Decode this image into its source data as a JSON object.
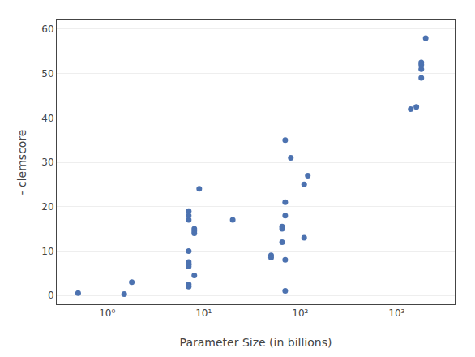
{
  "chart_data": {
    "type": "scatter",
    "x": [
      0.5,
      1.5,
      1.8,
      7,
      7,
      7,
      7,
      7,
      7,
      7,
      7,
      7,
      7,
      8,
      8,
      8,
      8,
      9,
      20,
      50,
      50,
      65,
      65,
      65,
      70,
      70,
      70,
      70,
      70,
      80,
      110,
      110,
      120,
      1400,
      1600,
      1800,
      1800,
      1800,
      1800,
      2000
    ],
    "values": [
      0.5,
      0.3,
      3,
      7.5,
      7,
      7,
      6.5,
      2.5,
      2,
      10,
      17,
      18,
      19,
      15,
      14.5,
      14,
      4.5,
      24,
      17,
      9,
      8.5,
      15.5,
      15,
      12,
      21,
      18,
      8,
      1,
      35,
      31,
      25,
      13,
      27,
      42,
      42.5,
      49,
      51,
      52,
      52.5,
      58
    ],
    "color": "#4c72b0",
    "marker": "circle",
    "xlabel": "Parameter Size (in billions)",
    "ylabel": "- clemscore",
    "log": "x",
    "xlim": [
      0.3,
      4000
    ],
    "xticks": [
      {
        "value": 1,
        "label": "10⁰"
      },
      {
        "value": 10,
        "label": "10¹"
      },
      {
        "value": 100,
        "label": "10²"
      },
      {
        "value": 1000,
        "label": "10³"
      }
    ],
    "ylim": [
      -2,
      62
    ],
    "yticks": [
      0,
      10,
      20,
      30,
      40,
      50,
      60
    ],
    "grid": "y"
  }
}
